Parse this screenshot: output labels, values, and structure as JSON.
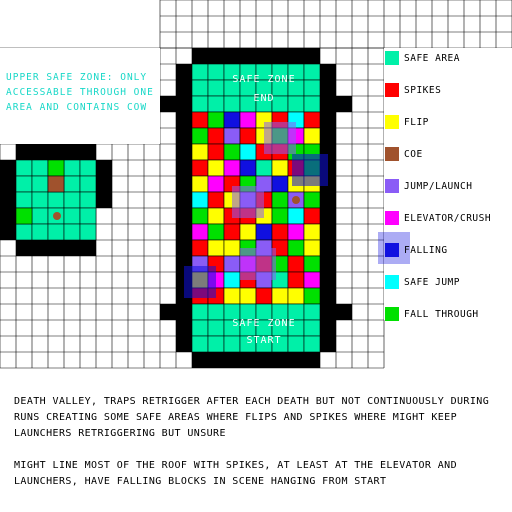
{
  "upper_zone_note": "UPPER SAFE ZONE: ONLY ACCESSABLE THROUGH ONE AREA AND CONTAINS COW",
  "end_zone": {
    "title": "SAFE ZONE",
    "subtitle": "END"
  },
  "start_zone": {
    "title": "SAFE ZONE",
    "subtitle": "START"
  },
  "legend": [
    {
      "label": "SAFE AREA",
      "color": "#00f0a8"
    },
    {
      "label": "SPIKES",
      "color": "#ff0000"
    },
    {
      "label": "FLIP",
      "color": "#ffff00"
    },
    {
      "label": "COE",
      "color": "#a0522d"
    },
    {
      "label": "JUMP/LAUNCH",
      "color": "#8a5cf6"
    },
    {
      "label": "ELEVATOR/CRUSH",
      "color": "#ff00ff"
    },
    {
      "label": "FALLING",
      "color": "#1010e0"
    },
    {
      "label": "SAFE JUMP",
      "color": "#00ffff"
    },
    {
      "label": "FALL THROUGH",
      "color": "#00e000"
    }
  ],
  "notes": [
    "DEATH VALLEY, TRAPS RETRIGGER AFTER EACH DEATH BUT NOT CONTINUOUSLY DURING RUNS CREATING SOME SAFE AREAS WHERE FLIPS AND SPIKES WHERE MIGHT KEEP LAUNCHERS RETRIGGERING BUT UNSURE",
    "MIGHT LINE MOST OF THE ROOF WITH SPIKES, AT LEAST AT THE ELEVATOR AND LAUNCHERS, HAVE FALLING BLOCKS IN SCENE HANGING FROM START"
  ],
  "colors": {
    "wall": "#000000",
    "safe": "#00f0a8",
    "spikes": "#ff0000",
    "flip": "#ffff00",
    "coe": "#a0522d",
    "jump": "#8a5cf6",
    "elevator": "#ff00ff",
    "falling": "#1010e0",
    "safe_jump": "#00ffff",
    "fall_through": "#00e000"
  },
  "trap_rows": [
    "RGBMYRCR",
    "GRJRYGMY",
    "YRGCRRGG",
    "RYMBFYRG",
    "YMRGJBYY",
    "CRYJRGJG",
    "GYRRYGCR",
    "MGRYBRMY",
    "RYYGJRGY",
    "JRJMRGRG",
    "YMCRJFRM",
    "RRYYRYYG"
  ]
}
